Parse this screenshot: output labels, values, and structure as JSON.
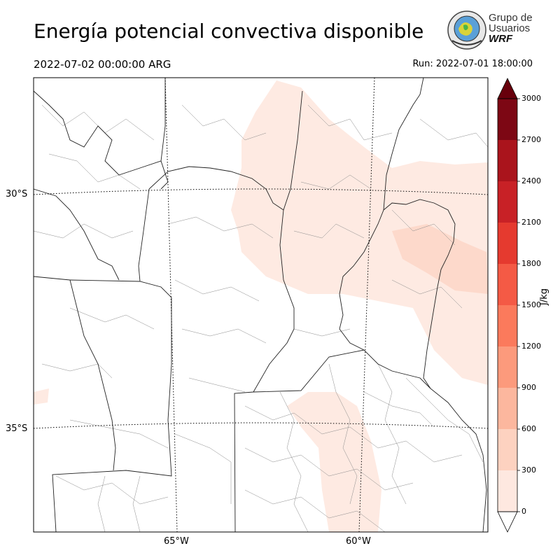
{
  "header": {
    "title": "Energía potencial convectiva disponible",
    "valid_time": "2022-07-02 00:00:00 ARG",
    "run": "Run: 2022-07-01 18:00:00"
  },
  "logo": {
    "line1": "Grupo de",
    "line2": "Usuarios",
    "line3": "WRF"
  },
  "map": {
    "lat_labels": [
      "30°S",
      "35°S"
    ],
    "lon_labels": [
      "65°W",
      "60°W"
    ]
  },
  "colorbar": {
    "units": "J/kg",
    "levels": [
      "0",
      "300",
      "600",
      "900",
      "1200",
      "1500",
      "1800",
      "2100",
      "2400",
      "2700",
      "3000"
    ],
    "colors": [
      "#fee8e0",
      "#fdd2c0",
      "#fcb79e",
      "#fc9a7c",
      "#fb7a5c",
      "#f45a45",
      "#e53a2f",
      "#c82126",
      "#aa141c",
      "#7d0714"
    ],
    "extend": "both"
  }
}
